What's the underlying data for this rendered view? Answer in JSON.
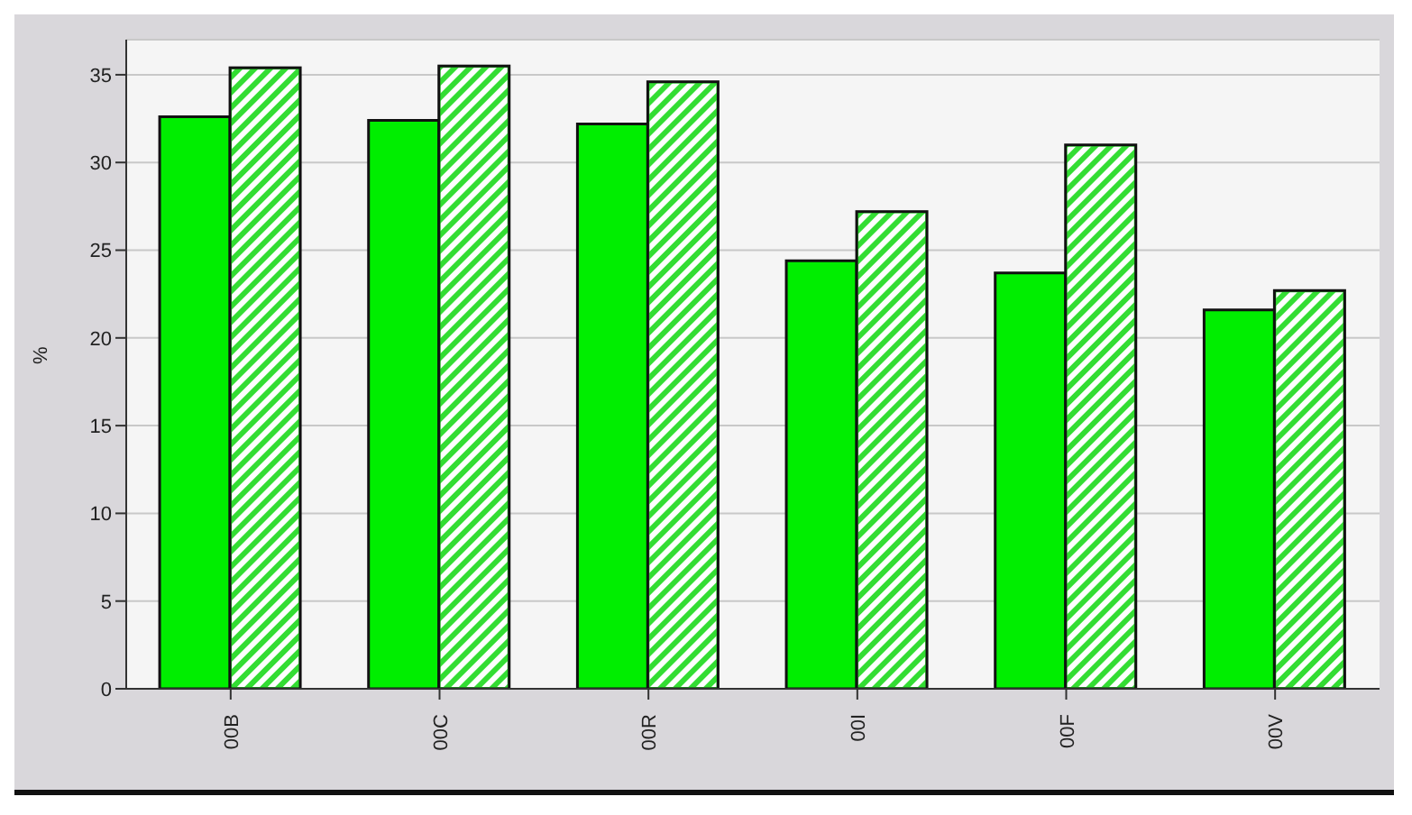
{
  "chart_data": {
    "type": "bar",
    "ylabel": "%",
    "categories": [
      "00B",
      "00C",
      "00R",
      "00I",
      "00F",
      "00V"
    ],
    "series": [
      {
        "color": "#00ee00",
        "values": [
          32.6,
          32.4,
          32.2,
          24.4,
          23.7,
          21.6
        ]
      },
      {
        "color": "#33dd33",
        "values": [
          35.4,
          35.5,
          34.6,
          27.2,
          31.0,
          22.7
        ]
      }
    ],
    "ylim": [
      0,
      37
    ],
    "yticks": [
      0,
      5,
      10,
      15,
      20,
      25,
      30,
      35
    ],
    "grid": "y",
    "legend": false
  }
}
